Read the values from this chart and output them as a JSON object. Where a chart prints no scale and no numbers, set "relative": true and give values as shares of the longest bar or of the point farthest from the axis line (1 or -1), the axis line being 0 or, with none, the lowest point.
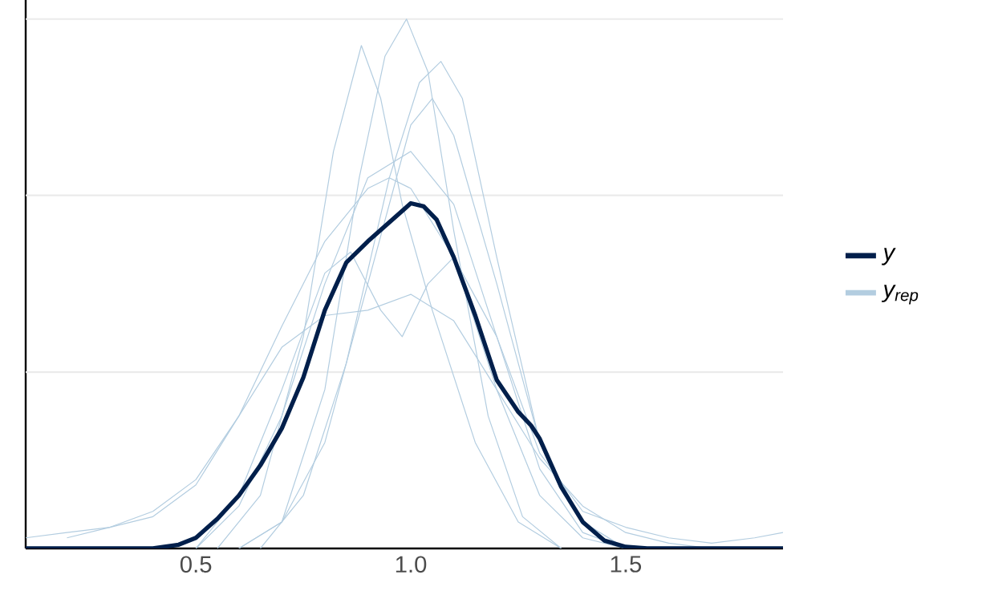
{
  "chart_data": {
    "type": "line",
    "relative": true,
    "xlim": [
      0.104,
      1.866
    ],
    "xticks": [
      0.5,
      {
        "value": 1,
        "label": "1.0"
      },
      1.5
    ],
    "ref_lines": [
      {
        "axis": "y",
        "value": 0.333,
        "color": "#ebebeb"
      },
      {
        "axis": "y",
        "value": 0.667,
        "color": "#ebebeb"
      },
      {
        "axis": "y",
        "value": 1,
        "color": "#ebebeb"
      }
    ],
    "legend": "right",
    "tick_labels": "x",
    "series": [
      {
        "name": "y",
        "color": "#011f4b",
        "x": [
          0.104,
          0.4,
          0.46,
          0.5,
          0.55,
          0.6,
          0.65,
          0.7,
          0.75,
          0.8,
          0.85,
          0.9,
          0.95,
          1.0,
          1.03,
          1.06,
          1.1,
          1.15,
          1.2,
          1.25,
          1.28,
          1.3,
          1.35,
          1.4,
          1.45,
          1.5,
          1.55,
          1.866
        ],
        "values": [
          0,
          0,
          0.007,
          0.02,
          0.056,
          0.1,
          0.157,
          0.227,
          0.323,
          0.45,
          0.54,
          0.58,
          0.616,
          0.652,
          0.646,
          0.621,
          0.55,
          0.44,
          0.318,
          0.258,
          0.232,
          0.207,
          0.116,
          0.05,
          0.015,
          0.003,
          0,
          0
        ]
      },
      {
        "name": "*y*$_{rep}$",
        "color": "#b3cde0",
        "x": [
          0.6,
          0.7,
          0.8,
          0.88,
          0.94,
          0.99,
          1.04,
          1.1,
          1.18,
          1.26,
          1.35
        ],
        "values": [
          0,
          0.05,
          0.3,
          0.7,
          0.93,
          1.0,
          0.9,
          0.6,
          0.25,
          0.06,
          0
        ]
      },
      {
        "color": "#b3cde0",
        "x": [
          0.55,
          0.65,
          0.75,
          0.82,
          0.885,
          0.93,
          0.98,
          1.05,
          1.15,
          1.25,
          1.35
        ],
        "values": [
          0,
          0.1,
          0.4,
          0.75,
          0.95,
          0.85,
          0.65,
          0.45,
          0.2,
          0.05,
          0
        ]
      },
      {
        "color": "#b3cde0",
        "x": [
          0.2,
          0.3,
          0.4,
          0.5,
          0.6,
          0.7,
          0.8,
          0.9,
          1.0,
          1.1,
          1.2,
          1.3,
          1.4,
          1.5,
          1.6,
          1.7
        ],
        "values": [
          0.02,
          0.04,
          0.07,
          0.13,
          0.25,
          0.38,
          0.44,
          0.45,
          0.48,
          0.43,
          0.3,
          0.17,
          0.08,
          0.03,
          0.01,
          0
        ]
      },
      {
        "color": "#b3cde0",
        "x": [
          0.6,
          0.7,
          0.8,
          0.9,
          1.0,
          1.05,
          1.1,
          1.2,
          1.3,
          1.4,
          1.5
        ],
        "values": [
          0,
          0.05,
          0.2,
          0.5,
          0.8,
          0.85,
          0.78,
          0.5,
          0.2,
          0.05,
          0
        ]
      },
      {
        "color": "#b3cde0",
        "x": [
          0.5,
          0.6,
          0.7,
          0.8,
          0.9,
          1.0,
          1.1,
          1.2,
          1.3,
          1.4,
          1.5,
          1.6,
          1.7,
          1.8,
          1.866
        ],
        "values": [
          0,
          0.08,
          0.25,
          0.5,
          0.7,
          0.75,
          0.65,
          0.4,
          0.18,
          0.07,
          0.04,
          0.02,
          0.01,
          0.02,
          0.03
        ]
      },
      {
        "color": "#b3cde0",
        "x": [
          0.104,
          0.2,
          0.3,
          0.4,
          0.5,
          0.6,
          0.7,
          0.8,
          0.9,
          0.95,
          1.0,
          1.1,
          1.2,
          1.3,
          1.4,
          1.5
        ],
        "values": [
          0.02,
          0.03,
          0.04,
          0.06,
          0.12,
          0.25,
          0.42,
          0.58,
          0.68,
          0.7,
          0.68,
          0.55,
          0.3,
          0.1,
          0.02,
          0
        ]
      },
      {
        "color": "#b3cde0",
        "x": [
          0.5,
          0.6,
          0.7,
          0.8,
          0.86,
          0.93,
          0.98,
          1.04,
          1.1,
          1.2,
          1.3,
          1.4,
          1.5
        ],
        "values": [
          0,
          0.1,
          0.3,
          0.52,
          0.56,
          0.45,
          0.4,
          0.5,
          0.55,
          0.4,
          0.15,
          0.03,
          0
        ]
      },
      {
        "color": "#b3cde0",
        "x": [
          0.65,
          0.75,
          0.85,
          0.95,
          1.02,
          1.07,
          1.12,
          1.2,
          1.3,
          1.4,
          1.5
        ],
        "values": [
          0,
          0.1,
          0.35,
          0.7,
          0.88,
          0.92,
          0.85,
          0.55,
          0.2,
          0.05,
          0
        ]
      }
    ]
  }
}
